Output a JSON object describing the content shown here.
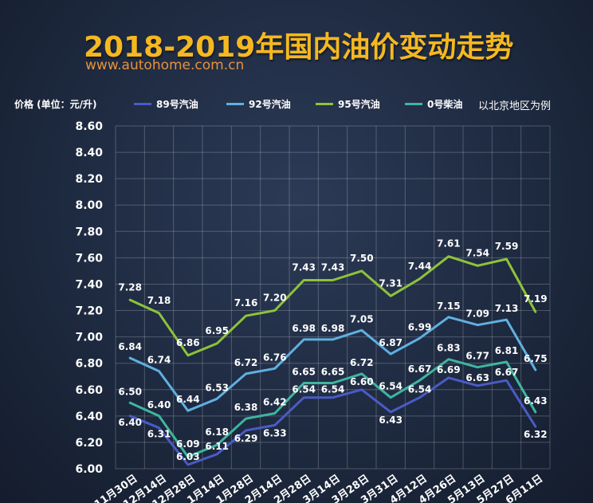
{
  "title": "2018-2019年国内油价变动走势",
  "source": "www.autohome.com.cn",
  "note": "以北京地区为例",
  "chart_data": {
    "type": "line",
    "ylabel": "价格  (单位：元/升)",
    "ylim": [
      6.0,
      8.6
    ],
    "yticks": [
      "6.00",
      "6.20",
      "6.40",
      "6.60",
      "6.80",
      "7.00",
      "7.20",
      "7.40",
      "7.60",
      "7.80",
      "8.00",
      "8.20",
      "8.40",
      "8.60"
    ],
    "categories": [
      "11月30日",
      "12月14日",
      "12月28日",
      "1月14日",
      "1月28日",
      "2月14日",
      "2月28日",
      "3月14日",
      "3月28日",
      "3月31日",
      "4月12日",
      "4月26日",
      "5月13日",
      "5月27日",
      "6月11日"
    ],
    "grid": true,
    "legend": "top",
    "series": [
      {
        "name": "89号汽油",
        "color": "#4a5bc4",
        "values": [
          6.4,
          6.31,
          6.03,
          6.11,
          6.29,
          6.33,
          6.54,
          6.54,
          6.6,
          6.43,
          6.54,
          6.69,
          6.63,
          6.67,
          6.32
        ]
      },
      {
        "name": "92号汽油",
        "color": "#5fb0e0",
        "values": [
          6.84,
          6.74,
          6.44,
          6.53,
          6.72,
          6.76,
          6.98,
          6.98,
          7.05,
          6.87,
          6.99,
          7.15,
          7.09,
          7.13,
          6.75
        ]
      },
      {
        "name": "95号汽油",
        "color": "#8ec33a",
        "values": [
          7.28,
          7.18,
          6.86,
          6.95,
          7.16,
          7.2,
          7.43,
          7.43,
          7.5,
          7.31,
          7.44,
          7.61,
          7.54,
          7.59,
          7.19
        ]
      },
      {
        "name": "0号柴油",
        "color": "#3fb5a0",
        "values": [
          6.5,
          6.4,
          6.09,
          6.18,
          6.38,
          6.42,
          6.65,
          6.65,
          6.72,
          6.54,
          6.67,
          6.83,
          6.77,
          6.81,
          6.43
        ]
      }
    ]
  }
}
